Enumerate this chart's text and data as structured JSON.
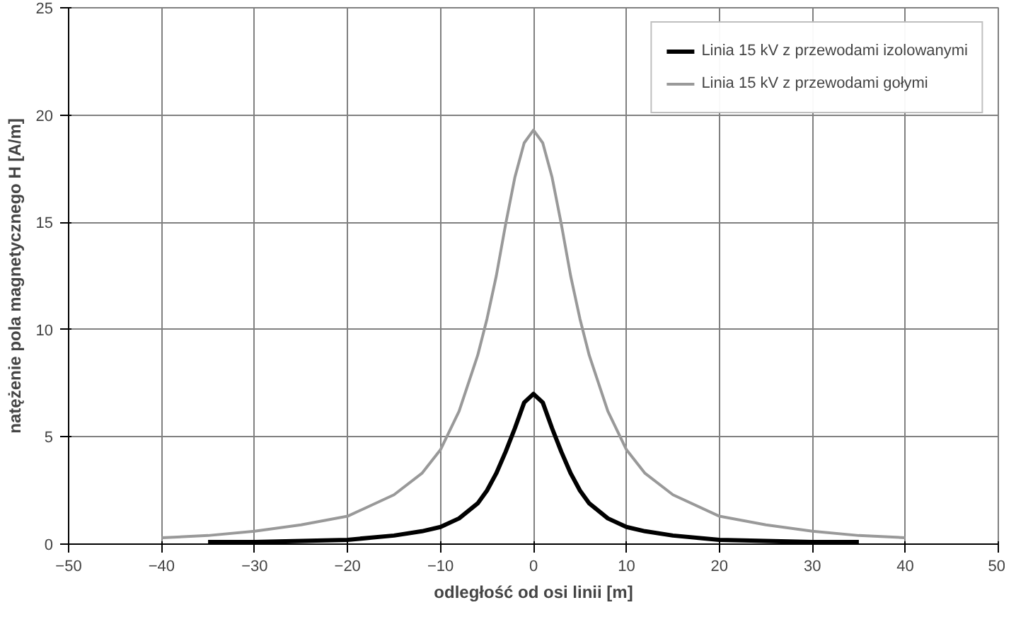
{
  "chart_data": {
    "type": "line",
    "xlabel": "odległość od osi linii [m]",
    "ylabel": "natężenie pola magnetycznego H [A/m]",
    "x": [
      -40,
      -35,
      -30,
      -25,
      -20,
      -15,
      -12,
      -10,
      -8,
      -6,
      -5,
      -4,
      -3,
      -2,
      -1,
      0,
      1,
      2,
      3,
      4,
      5,
      6,
      8,
      10,
      12,
      15,
      20,
      25,
      30,
      35,
      40
    ],
    "series": [
      {
        "name": "Linia 15 kV z przewodami izolowanymi",
        "color": "#000000",
        "values": [
          null,
          0.1,
          0.1,
          0.15,
          0.2,
          0.4,
          0.6,
          0.8,
          1.2,
          1.9,
          2.5,
          3.3,
          4.3,
          5.4,
          6.6,
          7.0,
          6.6,
          5.4,
          4.3,
          3.3,
          2.5,
          1.9,
          1.2,
          0.8,
          0.6,
          0.4,
          0.2,
          0.15,
          0.1,
          0.1,
          null
        ]
      },
      {
        "name": "Linia 15 kV z przewodami gołymi",
        "color": "#999999",
        "values": [
          0.3,
          0.4,
          0.6,
          0.9,
          1.3,
          2.3,
          3.3,
          4.4,
          6.2,
          8.8,
          10.5,
          12.5,
          14.9,
          17.1,
          18.7,
          19.3,
          18.7,
          17.1,
          14.9,
          12.5,
          10.5,
          8.8,
          6.2,
          4.4,
          3.3,
          2.3,
          1.3,
          0.9,
          0.6,
          0.4,
          0.3
        ]
      }
    ],
    "xlim": [
      -50,
      50
    ],
    "ylim": [
      0,
      25
    ],
    "xticks": [
      -50,
      -40,
      -30,
      -20,
      -10,
      0,
      10,
      20,
      30,
      40,
      50
    ],
    "yticks": [
      0,
      5,
      10,
      15,
      20,
      25
    ],
    "grid": true,
    "legend": "top right"
  }
}
